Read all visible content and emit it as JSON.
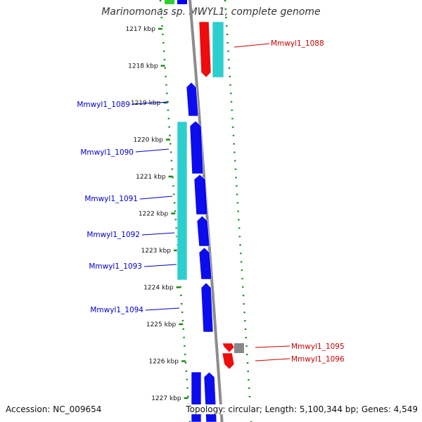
{
  "header": {
    "title": "Marinomonas sp. MWYL1, complete genome"
  },
  "footer": {
    "accession": "Accession: NC_009654",
    "summary": "Topology: circular; Length: 5,100,344 bp; Genes: 4,549"
  },
  "colors": {
    "backbone": "#8c8c8c",
    "tick": "#1a8a1a",
    "forward_cds": "#0000ee",
    "reverse_cds": "#ee0000",
    "cyan_feature": "#22cccc",
    "gray_feature": "#888888",
    "label_left": "#0000cc",
    "label_right": "#cc0000"
  },
  "diagram_data": {
    "ticks": [
      "1217 kbp",
      "1218 kbp",
      "1219 kbp",
      "1220 kbp",
      "1221 kbp",
      "1222 kbp",
      "1223 kbp",
      "1224 kbp",
      "1225 kbp",
      "1226 kbp",
      "1227 kbp"
    ],
    "gene_labels": [
      {
        "name": "Mmwyl1_1088",
        "side": "right"
      },
      {
        "name": "Mmwyl1_1089",
        "side": "left"
      },
      {
        "name": "Mmwyl1_1090",
        "side": "left"
      },
      {
        "name": "Mmwyl1_1091",
        "side": "left"
      },
      {
        "name": "Mmwyl1_1092",
        "side": "left"
      },
      {
        "name": "Mmwyl1_1093",
        "side": "left"
      },
      {
        "name": "Mmwyl1_1094",
        "side": "left"
      },
      {
        "name": "Mmwyl1_1095",
        "side": "right"
      },
      {
        "name": "Mmwyl1_1096",
        "side": "right"
      }
    ]
  }
}
